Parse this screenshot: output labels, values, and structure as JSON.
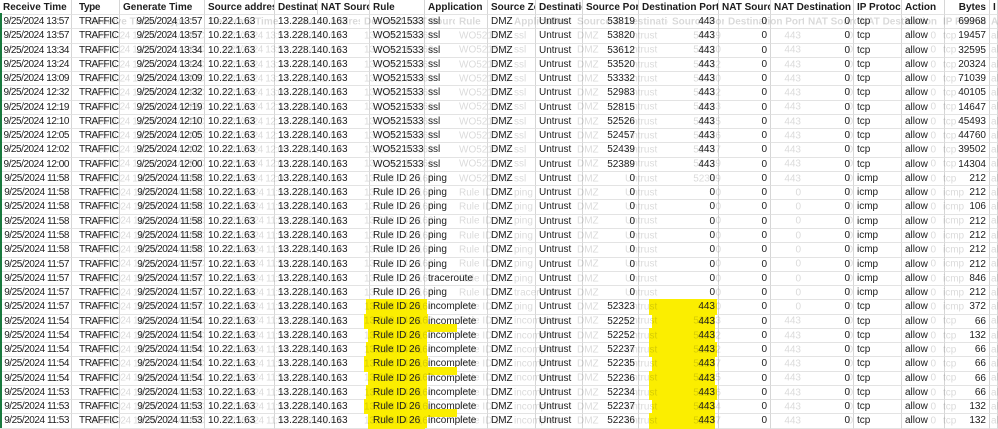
{
  "sheet": {
    "description": "firewall traffic log spreadsheet",
    "columns": [
      {
        "key": "rt",
        "label": "Receive Time"
      },
      {
        "key": "type",
        "label": "Type"
      },
      {
        "key": "gt",
        "label": "Generate Time"
      },
      {
        "key": "sa",
        "label": "Source address"
      },
      {
        "key": "da",
        "label": "Destinatic"
      },
      {
        "key": "ns",
        "label": "NAT Sourc"
      },
      {
        "key": "rule",
        "label": "Rule"
      },
      {
        "key": "app",
        "label": "Application"
      },
      {
        "key": "sz",
        "label": "Source Zo"
      },
      {
        "key": "dz",
        "label": "Destinatic"
      },
      {
        "key": "sp",
        "label": "Source Port"
      },
      {
        "key": "dp",
        "label": "Destination Port"
      },
      {
        "key": "nats",
        "label": "NAT Source"
      },
      {
        "key": "natd",
        "label": "NAT Destination F"
      },
      {
        "key": "proto",
        "label": "IP Protocc"
      },
      {
        "key": "action",
        "label": "Action"
      },
      {
        "key": "bytes",
        "label": "Bytes"
      },
      {
        "key": "x",
        "label": "I"
      }
    ],
    "rows": [
      {
        "rt": "9/25/2024 13:57",
        "type": "TRAFFIC",
        "gt": "9/25/2024 13:57",
        "sa": "10.22.1.63",
        "da": "13.228.140.163",
        "rule": "WO521533",
        "app": "ssl",
        "sz": "DMZ",
        "dz": "Untrust",
        "sp": "53819",
        "dp": "443",
        "nats": "0",
        "natd": "0",
        "proto": "tcp",
        "action": "allow",
        "bytes": "69968",
        "highlight": false
      },
      {
        "rt": "9/25/2024 13:57",
        "type": "TRAFFIC",
        "gt": "9/25/2024 13:57",
        "sa": "10.22.1.63",
        "da": "13.228.140.163",
        "rule": "WO521533",
        "app": "ssl",
        "sz": "DMZ",
        "dz": "Untrust",
        "sp": "53820",
        "dp": "443",
        "nats": "0",
        "natd": "0",
        "proto": "tcp",
        "action": "allow",
        "bytes": "19457",
        "highlight": false
      },
      {
        "rt": "9/25/2024 13:34",
        "type": "TRAFFIC",
        "gt": "9/25/2024 13:34",
        "sa": "10.22.1.63",
        "da": "13.228.140.163",
        "rule": "WO521533",
        "app": "ssl",
        "sz": "DMZ",
        "dz": "Untrust",
        "sp": "53612",
        "dp": "443",
        "nats": "0",
        "natd": "0",
        "proto": "tcp",
        "action": "allow",
        "bytes": "32595",
        "highlight": false
      },
      {
        "rt": "9/25/2024 13:24",
        "type": "TRAFFIC",
        "gt": "9/25/2024 13:24",
        "sa": "10.22.1.63",
        "da": "13.228.140.163",
        "rule": "WO521533",
        "app": "ssl",
        "sz": "DMZ",
        "dz": "Untrust",
        "sp": "53520",
        "dp": "443",
        "nats": "0",
        "natd": "0",
        "proto": "tcp",
        "action": "allow",
        "bytes": "20324",
        "highlight": false
      },
      {
        "rt": "9/25/2024 13:09",
        "type": "TRAFFIC",
        "gt": "9/25/2024 13:09",
        "sa": "10.22.1.63",
        "da": "13.228.140.163",
        "rule": "WO521533",
        "app": "ssl",
        "sz": "DMZ",
        "dz": "Untrust",
        "sp": "53332",
        "dp": "443",
        "nats": "0",
        "natd": "0",
        "proto": "tcp",
        "action": "allow",
        "bytes": "71039",
        "highlight": false
      },
      {
        "rt": "9/25/2024 12:32",
        "type": "TRAFFIC",
        "gt": "9/25/2024 12:32",
        "sa": "10.22.1.63",
        "da": "13.228.140.163",
        "rule": "WO521533",
        "app": "ssl",
        "sz": "DMZ",
        "dz": "Untrust",
        "sp": "52983",
        "dp": "443",
        "nats": "0",
        "natd": "0",
        "proto": "tcp",
        "action": "allow",
        "bytes": "40105",
        "highlight": false
      },
      {
        "rt": "9/25/2024 12:19",
        "type": "TRAFFIC",
        "gt": "9/25/2024 12:19",
        "sa": "10.22.1.63",
        "da": "13.228.140.163",
        "rule": "WO521533",
        "app": "ssl",
        "sz": "DMZ",
        "dz": "Untrust",
        "sp": "52815",
        "dp": "443",
        "nats": "0",
        "natd": "0",
        "proto": "tcp",
        "action": "allow",
        "bytes": "14647",
        "highlight": false
      },
      {
        "rt": "9/25/2024 12:10",
        "type": "TRAFFIC",
        "gt": "9/25/2024 12:10",
        "sa": "10.22.1.63",
        "da": "13.228.140.163",
        "rule": "WO521533",
        "app": "ssl",
        "sz": "DMZ",
        "dz": "Untrust",
        "sp": "52526",
        "dp": "443",
        "nats": "0",
        "natd": "0",
        "proto": "tcp",
        "action": "allow",
        "bytes": "45493",
        "highlight": false
      },
      {
        "rt": "9/25/2024 12:05",
        "type": "TRAFFIC",
        "gt": "9/25/2024 12:05",
        "sa": "10.22.1.63",
        "da": "13.228.140.163",
        "rule": "WO521533",
        "app": "ssl",
        "sz": "DMZ",
        "dz": "Untrust",
        "sp": "52457",
        "dp": "443",
        "nats": "0",
        "natd": "0",
        "proto": "tcp",
        "action": "allow",
        "bytes": "44760",
        "highlight": false
      },
      {
        "rt": "9/25/2024 12:02",
        "type": "TRAFFIC",
        "gt": "9/25/2024 12:02",
        "sa": "10.22.1.63",
        "da": "13.228.140.163",
        "rule": "WO521533",
        "app": "ssl",
        "sz": "DMZ",
        "dz": "Untrust",
        "sp": "52439",
        "dp": "443",
        "nats": "0",
        "natd": "0",
        "proto": "tcp",
        "action": "allow",
        "bytes": "39502",
        "highlight": false
      },
      {
        "rt": "9/25/2024 12:00",
        "type": "TRAFFIC",
        "gt": "9/25/2024 12:00",
        "sa": "10.22.1.63",
        "da": "13.228.140.163",
        "rule": "WO521533",
        "app": "ssl",
        "sz": "DMZ",
        "dz": "Untrust",
        "sp": "52389",
        "dp": "443",
        "nats": "0",
        "natd": "0",
        "proto": "tcp",
        "action": "allow",
        "bytes": "14304",
        "highlight": false
      },
      {
        "rt": "9/25/2024 11:58",
        "type": "TRAFFIC",
        "gt": "9/25/2024 11:58",
        "sa": "10.22.1.63",
        "da": "13.228.140.163",
        "rule": "Rule ID 26",
        "app": "ping",
        "sz": "DMZ",
        "dz": "Untrust",
        "sp": "0",
        "dp": "0",
        "nats": "0",
        "natd": "0",
        "proto": "icmp",
        "action": "allow",
        "bytes": "212",
        "highlight": false
      },
      {
        "rt": "9/25/2024 11:58",
        "type": "TRAFFIC",
        "gt": "9/25/2024 11:58",
        "sa": "10.22.1.63",
        "da": "13.228.140.163",
        "rule": "Rule ID 26",
        "app": "ping",
        "sz": "DMZ",
        "dz": "Untrust",
        "sp": "0",
        "dp": "0",
        "nats": "0",
        "natd": "0",
        "proto": "icmp",
        "action": "allow",
        "bytes": "212",
        "highlight": false
      },
      {
        "rt": "9/25/2024 11:58",
        "type": "TRAFFIC",
        "gt": "9/25/2024 11:58",
        "sa": "10.22.1.63",
        "da": "13.228.140.163",
        "rule": "Rule ID 26",
        "app": "ping",
        "sz": "DMZ",
        "dz": "Untrust",
        "sp": "0",
        "dp": "0",
        "nats": "0",
        "natd": "0",
        "proto": "icmp",
        "action": "allow",
        "bytes": "106",
        "highlight": false
      },
      {
        "rt": "9/25/2024 11:58",
        "type": "TRAFFIC",
        "gt": "9/25/2024 11:58",
        "sa": "10.22.1.63",
        "da": "13.228.140.163",
        "rule": "Rule ID 26",
        "app": "ping",
        "sz": "DMZ",
        "dz": "Untrust",
        "sp": "0",
        "dp": "0",
        "nats": "0",
        "natd": "0",
        "proto": "icmp",
        "action": "allow",
        "bytes": "212",
        "highlight": false
      },
      {
        "rt": "9/25/2024 11:58",
        "type": "TRAFFIC",
        "gt": "9/25/2024 11:58",
        "sa": "10.22.1.63",
        "da": "13.228.140.163",
        "rule": "Rule ID 26",
        "app": "ping",
        "sz": "DMZ",
        "dz": "Untrust",
        "sp": "0",
        "dp": "0",
        "nats": "0",
        "natd": "0",
        "proto": "icmp",
        "action": "allow",
        "bytes": "212",
        "highlight": false
      },
      {
        "rt": "9/25/2024 11:58",
        "type": "TRAFFIC",
        "gt": "9/25/2024 11:58",
        "sa": "10.22.1.63",
        "da": "13.228.140.163",
        "rule": "Rule ID 26",
        "app": "ping",
        "sz": "DMZ",
        "dz": "Untrust",
        "sp": "0",
        "dp": "0",
        "nats": "0",
        "natd": "0",
        "proto": "icmp",
        "action": "allow",
        "bytes": "212",
        "highlight": false
      },
      {
        "rt": "9/25/2024 11:57",
        "type": "TRAFFIC",
        "gt": "9/25/2024 11:57",
        "sa": "10.22.1.63",
        "da": "13.228.140.163",
        "rule": "Rule ID 26",
        "app": "ping",
        "sz": "DMZ",
        "dz": "Untrust",
        "sp": "0",
        "dp": "0",
        "nats": "0",
        "natd": "0",
        "proto": "icmp",
        "action": "allow",
        "bytes": "212",
        "highlight": false
      },
      {
        "rt": "9/25/2024 11:57",
        "type": "TRAFFIC",
        "gt": "9/25/2024 11:57",
        "sa": "10.22.1.63",
        "da": "13.228.140.163",
        "rule": "Rule ID 26",
        "app": "traceroute",
        "sz": "DMZ",
        "dz": "Untrust",
        "sp": "0",
        "dp": "0",
        "nats": "0",
        "natd": "0",
        "proto": "icmp",
        "action": "allow",
        "bytes": "846",
        "highlight": false
      },
      {
        "rt": "9/25/2024 11:57",
        "type": "TRAFFIC",
        "gt": "9/25/2024 11:57",
        "sa": "10.22.1.63",
        "da": "13.228.140.163",
        "rule": "Rule ID 26",
        "app": "ping",
        "sz": "DMZ",
        "dz": "Untrust",
        "sp": "0",
        "dp": "0",
        "nats": "0",
        "natd": "0",
        "proto": "icmp",
        "action": "allow",
        "bytes": "212",
        "highlight": false
      },
      {
        "rt": "9/25/2024 11:57",
        "type": "TRAFFIC",
        "gt": "9/25/2024 11:57",
        "sa": "10.22.1.63",
        "da": "13.228.140.163",
        "rule": "Rule ID 26",
        "app": "incomplete",
        "sz": "DMZ",
        "dz": "Untrust",
        "sp": "52323",
        "dp": "443",
        "nats": "0",
        "natd": "0",
        "proto": "tcp",
        "action": "allow",
        "bytes": "372",
        "highlight": true
      },
      {
        "rt": "9/25/2024 11:54",
        "type": "TRAFFIC",
        "gt": "9/25/2024 11:54",
        "sa": "10.22.1.63",
        "da": "13.228.140.163",
        "rule": "Rule ID 26",
        "app": "incomplete",
        "sz": "DMZ",
        "dz": "Untrust",
        "sp": "52252",
        "dp": "443",
        "nats": "0",
        "natd": "0",
        "proto": "tcp",
        "action": "allow",
        "bytes": "66",
        "highlight": true
      },
      {
        "rt": "9/25/2024 11:54",
        "type": "TRAFFIC",
        "gt": "9/25/2024 11:54",
        "sa": "10.22.1.63",
        "da": "13.228.140.163",
        "rule": "Rule ID 26",
        "app": "incomplete",
        "sz": "DMZ",
        "dz": "Untrust",
        "sp": "52252",
        "dp": "443",
        "nats": "0",
        "natd": "0",
        "proto": "tcp",
        "action": "allow",
        "bytes": "132",
        "highlight": true
      },
      {
        "rt": "9/25/2024 11:54",
        "type": "TRAFFIC",
        "gt": "9/25/2024 11:54",
        "sa": "10.22.1.63",
        "da": "13.228.140.163",
        "rule": "Rule ID 26",
        "app": "incomplete",
        "sz": "DMZ",
        "dz": "Untrust",
        "sp": "52237",
        "dp": "443",
        "nats": "0",
        "natd": "0",
        "proto": "tcp",
        "action": "allow",
        "bytes": "66",
        "highlight": true
      },
      {
        "rt": "9/25/2024 11:54",
        "type": "TRAFFIC",
        "gt": "9/25/2024 11:54",
        "sa": "10.22.1.63",
        "da": "13.228.140.163",
        "rule": "Rule ID 26",
        "app": "incomplete",
        "sz": "DMZ",
        "dz": "Untrust",
        "sp": "52235",
        "dp": "443",
        "nats": "0",
        "natd": "0",
        "proto": "tcp",
        "action": "allow",
        "bytes": "66",
        "highlight": true
      },
      {
        "rt": "9/25/2024 11:54",
        "type": "TRAFFIC",
        "gt": "9/25/2024 11:54",
        "sa": "10.22.1.63",
        "da": "13.228.140.163",
        "rule": "Rule ID 26",
        "app": "incomplete",
        "sz": "DMZ",
        "dz": "Untrust",
        "sp": "52236",
        "dp": "443",
        "nats": "0",
        "natd": "0",
        "proto": "tcp",
        "action": "allow",
        "bytes": "66",
        "highlight": true
      },
      {
        "rt": "9/25/2024 11:53",
        "type": "TRAFFIC",
        "gt": "9/25/2024 11:53",
        "sa": "10.22.1.63",
        "da": "13.228.140.163",
        "rule": "Rule ID 26",
        "app": "incomplete",
        "sz": "DMZ",
        "dz": "Untrust",
        "sp": "52234",
        "dp": "443",
        "nats": "0",
        "natd": "0",
        "proto": "tcp",
        "action": "allow",
        "bytes": "66",
        "highlight": true
      },
      {
        "rt": "9/25/2024 11:53",
        "type": "TRAFFIC",
        "gt": "9/25/2024 11:53",
        "sa": "10.22.1.63",
        "da": "13.228.140.163",
        "rule": "Rule ID 26",
        "app": "incomplete",
        "sz": "DMZ",
        "dz": "Untrust",
        "sp": "52237",
        "dp": "443",
        "nats": "0",
        "natd": "0",
        "proto": "tcp",
        "action": "allow",
        "bytes": "132",
        "highlight": true
      },
      {
        "rt": "9/25/2024 11:53",
        "type": "TRAFFIC",
        "gt": "9/25/2024 11:53",
        "sa": "10.22.1.63",
        "da": "13.228.140.163",
        "rule": "Rule ID 26",
        "app": "incomplete",
        "sz": "DMZ",
        "dz": "Untrust",
        "sp": "52236",
        "dp": "443",
        "nats": "0",
        "natd": "0",
        "proto": "tcp",
        "action": "allow",
        "bytes": "132",
        "highlight": true
      }
    ],
    "colors": {
      "highlight_yellow": "#fbee00",
      "grid_line": "#d6d6d6",
      "row_line": "#e3e3e3",
      "text": "#1c1c1c",
      "left_edge_green": "#1a7a3f"
    }
  }
}
